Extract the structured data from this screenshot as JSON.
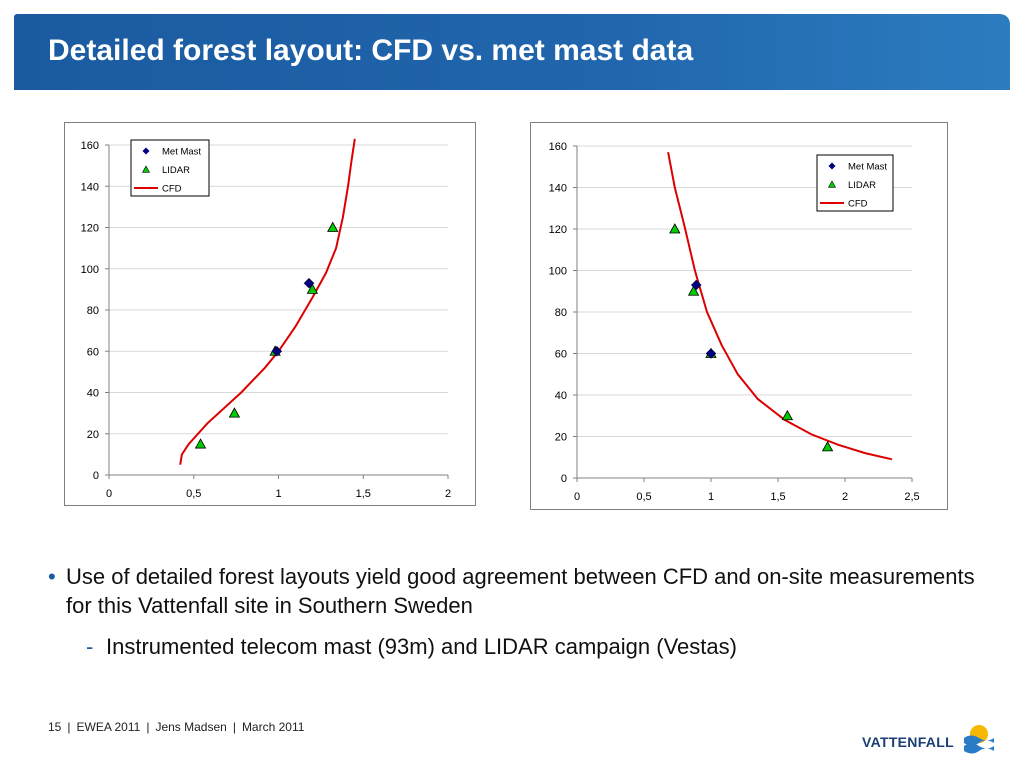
{
  "title": "Detailed forest layout: CFD vs. met mast data",
  "bullets": {
    "main": "Use of detailed forest layouts yield good agreement between CFD and on-site measurements for this Vattenfall site in Southern Sweden",
    "sub": "Instrumented telecom mast (93m) and LIDAR campaign (Vestas)",
    "bullet_symbol": "•",
    "sub_symbol": "-"
  },
  "footer": {
    "page": "15",
    "event": "EWEA 2011",
    "author": "Jens Madsen",
    "date": "March 2011",
    "separator": "|"
  },
  "logo": {
    "text": "VATTENFALL"
  },
  "colors": {
    "title_bar": "#1a5aa0",
    "met_mast": "#000080",
    "lidar": "#00cc00",
    "cfd": "#dd0000"
  },
  "chart_data": [
    {
      "type": "scatter",
      "xlim": [
        0,
        2
      ],
      "ylim": [
        0,
        160
      ],
      "xticks": [
        "0",
        "0,5",
        "1",
        "1,5",
        "2"
      ],
      "yticks": [
        "0",
        "20",
        "40",
        "60",
        "80",
        "100",
        "120",
        "140",
        "160"
      ],
      "legend_position": "top-left",
      "grid": "horizontal",
      "series": [
        {
          "name": "Met Mast",
          "marker": "diamond",
          "points": [
            [
              0.99,
              60
            ],
            [
              1.18,
              93
            ]
          ]
        },
        {
          "name": "LIDAR",
          "marker": "triangle",
          "points": [
            [
              0.54,
              15
            ],
            [
              0.74,
              30
            ],
            [
              0.98,
              60
            ],
            [
              1.2,
              90
            ],
            [
              1.32,
              120
            ]
          ]
        },
        {
          "name": "CFD",
          "marker": "line",
          "points": [
            [
              0.42,
              5
            ],
            [
              0.43,
              10
            ],
            [
              0.47,
              15
            ],
            [
              0.58,
              25
            ],
            [
              0.78,
              40
            ],
            [
              0.92,
              52
            ],
            [
              1.0,
              60
            ],
            [
              1.1,
              72
            ],
            [
              1.2,
              86
            ],
            [
              1.28,
              98
            ],
            [
              1.34,
              110
            ],
            [
              1.38,
              125
            ],
            [
              1.41,
              140
            ],
            [
              1.43,
              152
            ],
            [
              1.45,
              163
            ]
          ]
        }
      ]
    },
    {
      "type": "scatter",
      "xlim": [
        0,
        2.5
      ],
      "ylim": [
        0,
        160
      ],
      "xticks": [
        "0",
        "0,5",
        "1",
        "1,5",
        "2",
        "2,5"
      ],
      "yticks": [
        "0",
        "20",
        "40",
        "60",
        "80",
        "100",
        "120",
        "140",
        "160"
      ],
      "legend_position": "top-right",
      "grid": "horizontal",
      "series": [
        {
          "name": "Met Mast",
          "marker": "diamond",
          "points": [
            [
              1.0,
              60
            ],
            [
              0.89,
              93
            ]
          ]
        },
        {
          "name": "LIDAR",
          "marker": "triangle",
          "points": [
            [
              1.87,
              15
            ],
            [
              1.57,
              30
            ],
            [
              1.0,
              60
            ],
            [
              0.87,
              90
            ],
            [
              0.73,
              120
            ]
          ]
        },
        {
          "name": "CFD",
          "marker": "line",
          "points": [
            [
              0.68,
              157
            ],
            [
              0.73,
              140
            ],
            [
              0.8,
              122
            ],
            [
              0.88,
              100
            ],
            [
              0.97,
              80
            ],
            [
              1.08,
              64
            ],
            [
              1.2,
              50
            ],
            [
              1.35,
              38
            ],
            [
              1.55,
              28
            ],
            [
              1.75,
              21
            ],
            [
              1.95,
              16
            ],
            [
              2.15,
              12
            ],
            [
              2.35,
              9
            ]
          ]
        }
      ]
    }
  ]
}
